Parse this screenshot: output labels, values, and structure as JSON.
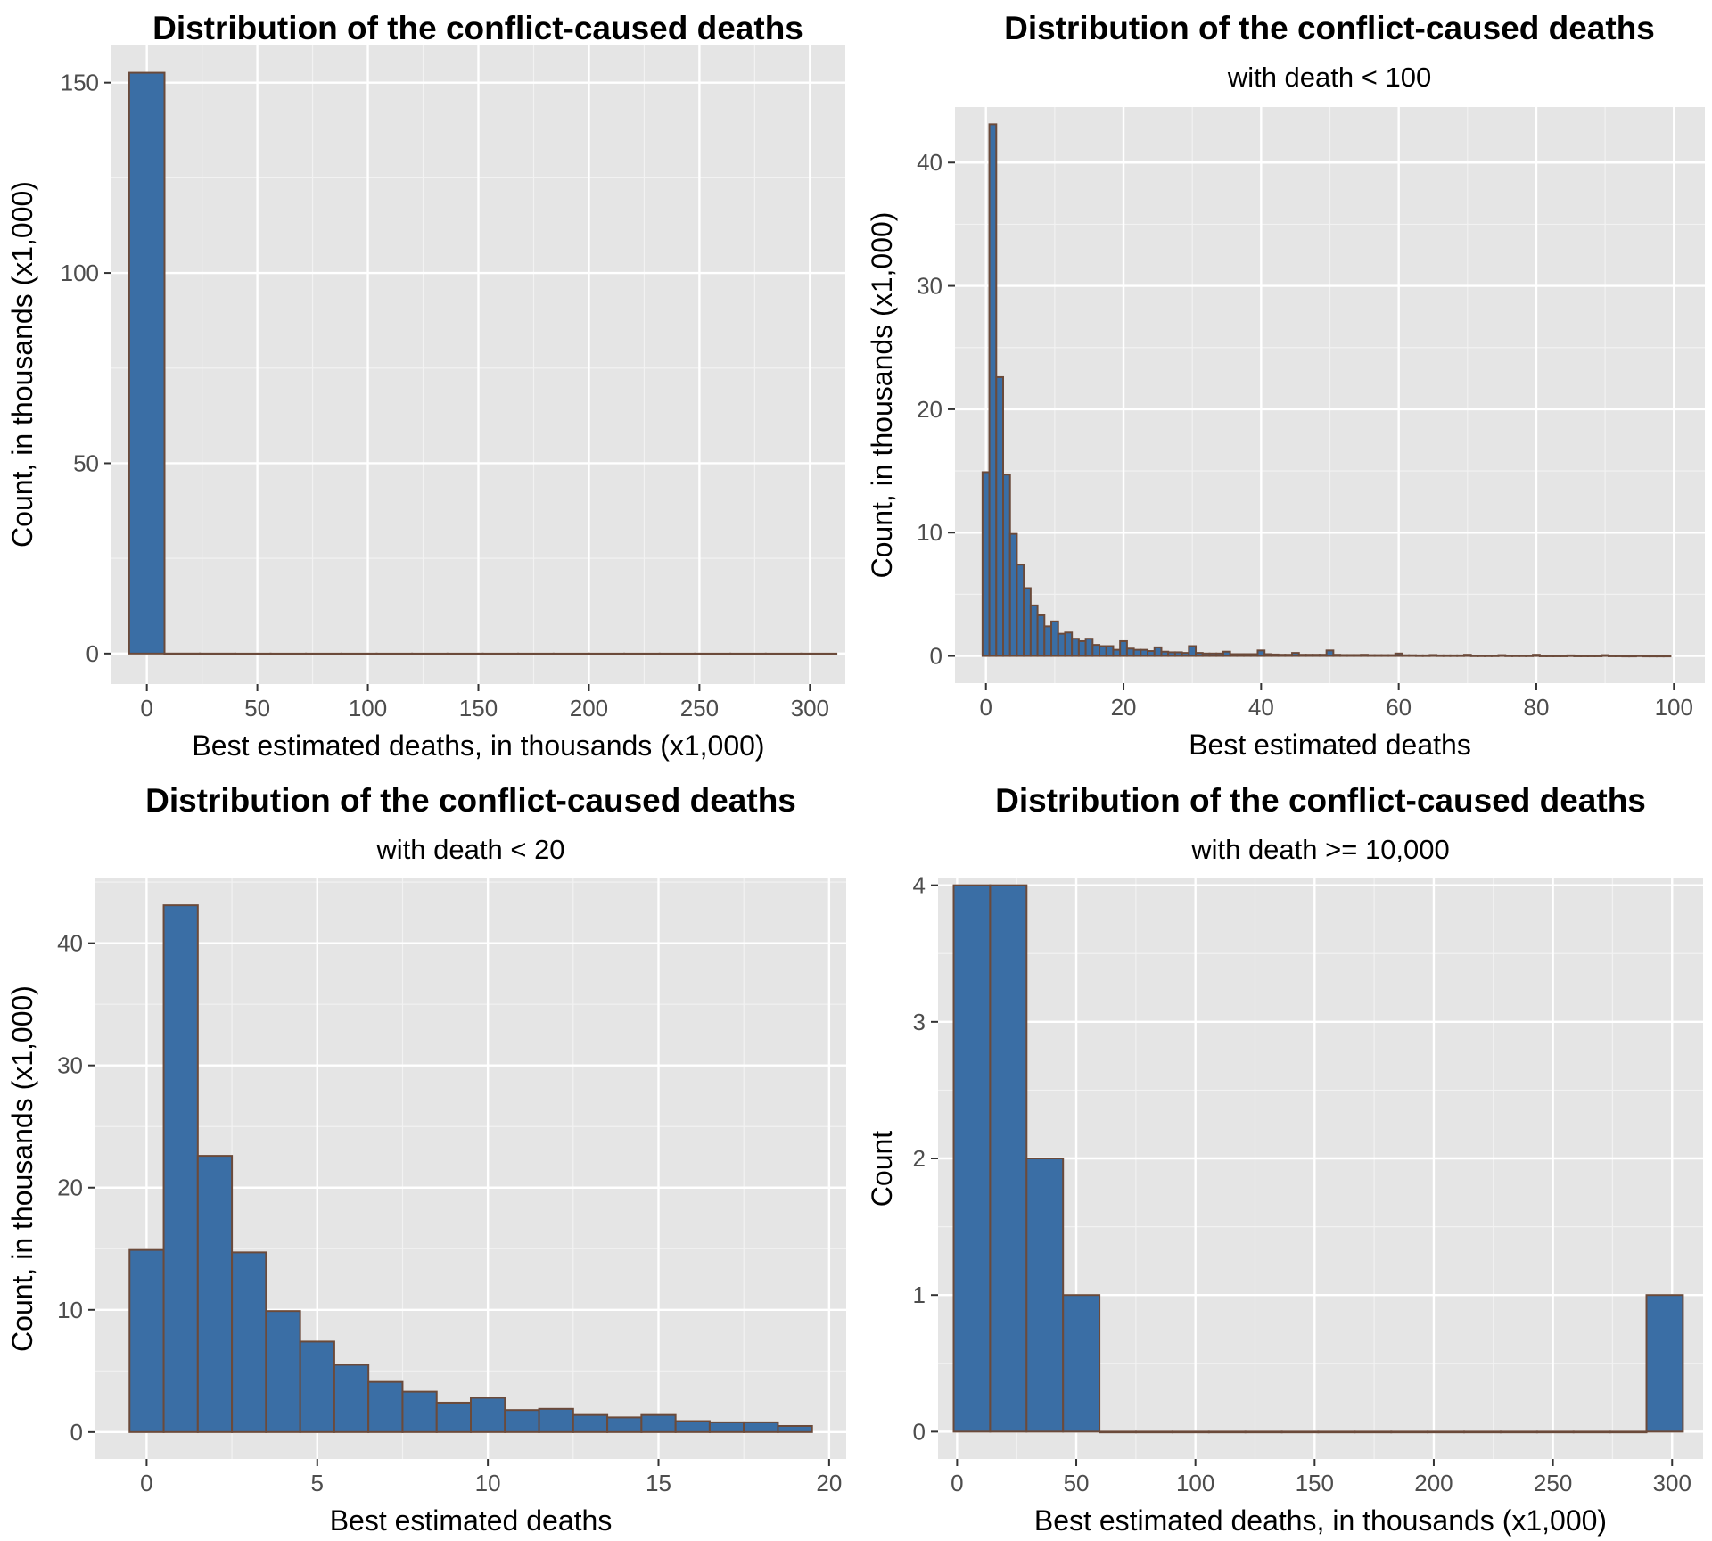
{
  "chart_data": [
    {
      "type": "bar",
      "panel": "top-left",
      "title": "Distribution of the conflict-caused deaths",
      "subtitle": "",
      "xlabel": "Best estimated deaths, in thousands (x1,000)",
      "ylabel": "Count, in thousands (x1,000)",
      "xlim": [
        -16,
        316
      ],
      "ylim": [
        -8,
        160
      ],
      "x_ticks": [
        0,
        50,
        100,
        150,
        200,
        250,
        300
      ],
      "y_ticks": [
        0,
        50,
        100,
        150
      ],
      "bin_width": 16,
      "bin_centers": [
        0,
        16,
        32,
        48,
        64,
        80,
        96,
        112,
        128,
        144,
        160,
        176,
        192,
        208,
        224,
        240,
        256,
        272,
        288,
        304
      ],
      "values": [
        152.6,
        0.02,
        0.01,
        0,
        0,
        0,
        0,
        0,
        0,
        0,
        0,
        0,
        0,
        0,
        0,
        0,
        0,
        0,
        0,
        0.001
      ]
    },
    {
      "type": "bar",
      "panel": "top-right",
      "title": "Distribution of the conflict-caused deaths",
      "subtitle": "with death < 100",
      "xlabel": "Best estimated deaths",
      "ylabel": "Count, in thousands (x1,000)",
      "xlim": [
        -4.5,
        104.5
      ],
      "ylim": [
        -2.2,
        44.5
      ],
      "x_ticks": [
        0,
        20,
        40,
        60,
        80,
        100
      ],
      "y_ticks": [
        0,
        10,
        20,
        30,
        40
      ],
      "bin_width": 1,
      "bin_centers": [
        0,
        1,
        2,
        3,
        4,
        5,
        6,
        7,
        8,
        9,
        10,
        11,
        12,
        13,
        14,
        15,
        16,
        17,
        18,
        19,
        20,
        21,
        22,
        23,
        24,
        25,
        26,
        27,
        28,
        29,
        30,
        31,
        32,
        33,
        34,
        35,
        36,
        37,
        38,
        39,
        40,
        41,
        42,
        43,
        44,
        45,
        46,
        47,
        48,
        49,
        50,
        51,
        52,
        53,
        54,
        55,
        56,
        57,
        58,
        59,
        60,
        61,
        62,
        63,
        64,
        65,
        66,
        67,
        68,
        69,
        70,
        71,
        72,
        73,
        74,
        75,
        76,
        77,
        78,
        79,
        80,
        81,
        82,
        83,
        84,
        85,
        86,
        87,
        88,
        89,
        90,
        91,
        92,
        93,
        94,
        95,
        96,
        97,
        98,
        99
      ],
      "values": [
        14.9,
        43.1,
        22.6,
        14.7,
        9.9,
        7.4,
        5.5,
        4.1,
        3.3,
        2.4,
        2.8,
        1.8,
        1.9,
        1.4,
        1.2,
        1.4,
        0.9,
        0.8,
        0.8,
        0.5,
        1.2,
        0.6,
        0.5,
        0.5,
        0.4,
        0.7,
        0.35,
        0.3,
        0.3,
        0.25,
        0.8,
        0.25,
        0.2,
        0.2,
        0.2,
        0.35,
        0.15,
        0.15,
        0.15,
        0.15,
        0.45,
        0.15,
        0.12,
        0.1,
        0.1,
        0.25,
        0.1,
        0.1,
        0.1,
        0.1,
        0.45,
        0.1,
        0.08,
        0.08,
        0.08,
        0.1,
        0.07,
        0.07,
        0.07,
        0.07,
        0.2,
        0.06,
        0.06,
        0.05,
        0.05,
        0.08,
        0.05,
        0.05,
        0.05,
        0.05,
        0.1,
        0.04,
        0.04,
        0.04,
        0.04,
        0.07,
        0.04,
        0.04,
        0.04,
        0.04,
        0.1,
        0.03,
        0.03,
        0.03,
        0.03,
        0.05,
        0.03,
        0.03,
        0.03,
        0.03,
        0.07,
        0.03,
        0.03,
        0.02,
        0.02,
        0.04,
        0.02,
        0.02,
        0.02,
        0.02
      ]
    },
    {
      "type": "bar",
      "panel": "bottom-left",
      "title": "Distribution of the conflict-caused deaths",
      "subtitle": "with death < 20",
      "xlabel": "Best estimated deaths",
      "ylabel": "Count, in thousands (x1,000)",
      "xlim": [
        -1.5,
        20.5
      ],
      "ylim": [
        -2.2,
        45.3
      ],
      "x_ticks": [
        0,
        5,
        10,
        15,
        20
      ],
      "y_ticks": [
        0,
        10,
        20,
        30,
        40
      ],
      "bin_width": 1,
      "bin_centers": [
        0,
        1,
        2,
        3,
        4,
        5,
        6,
        7,
        8,
        9,
        10,
        11,
        12,
        13,
        14,
        15,
        16,
        17,
        18,
        19
      ],
      "values": [
        14.9,
        43.1,
        22.6,
        14.7,
        9.9,
        7.4,
        5.5,
        4.1,
        3.3,
        2.4,
        2.8,
        1.8,
        1.9,
        1.4,
        1.2,
        1.4,
        0.9,
        0.8,
        0.8,
        0.5
      ]
    },
    {
      "type": "bar",
      "panel": "bottom-right",
      "title": "Distribution of the conflict-caused deaths",
      "subtitle": "with death >= 10,000",
      "xlabel": "Best estimated deaths, in thousands (x1,000)",
      "ylabel": "Count",
      "xlim": [
        -8,
        313
      ],
      "ylim": [
        -0.2,
        4.05
      ],
      "x_ticks": [
        0,
        50,
        100,
        150,
        200,
        250,
        300
      ],
      "y_ticks": [
        0,
        1,
        2,
        3,
        4
      ],
      "bin_width": 15.3,
      "bin_centers": [
        6.2,
        21.5,
        36.8,
        52.1,
        67.4,
        82.7,
        98.0,
        113.3,
        128.6,
        143.9,
        159.2,
        174.5,
        189.8,
        205.1,
        220.4,
        235.7,
        251.0,
        266.3,
        281.6,
        296.9
      ],
      "values": [
        4,
        4,
        2,
        1,
        0,
        0,
        0,
        0,
        0,
        0,
        0,
        0,
        0,
        0,
        0,
        0,
        0,
        0,
        0,
        1
      ]
    }
  ],
  "colors": {
    "bar_fill": "#3a6ea5",
    "bar_stroke": "#6b4a3a",
    "panel_bg": "#e5e5e5",
    "grid_major": "#ffffff",
    "grid_minor": "#f2f2f2"
  }
}
